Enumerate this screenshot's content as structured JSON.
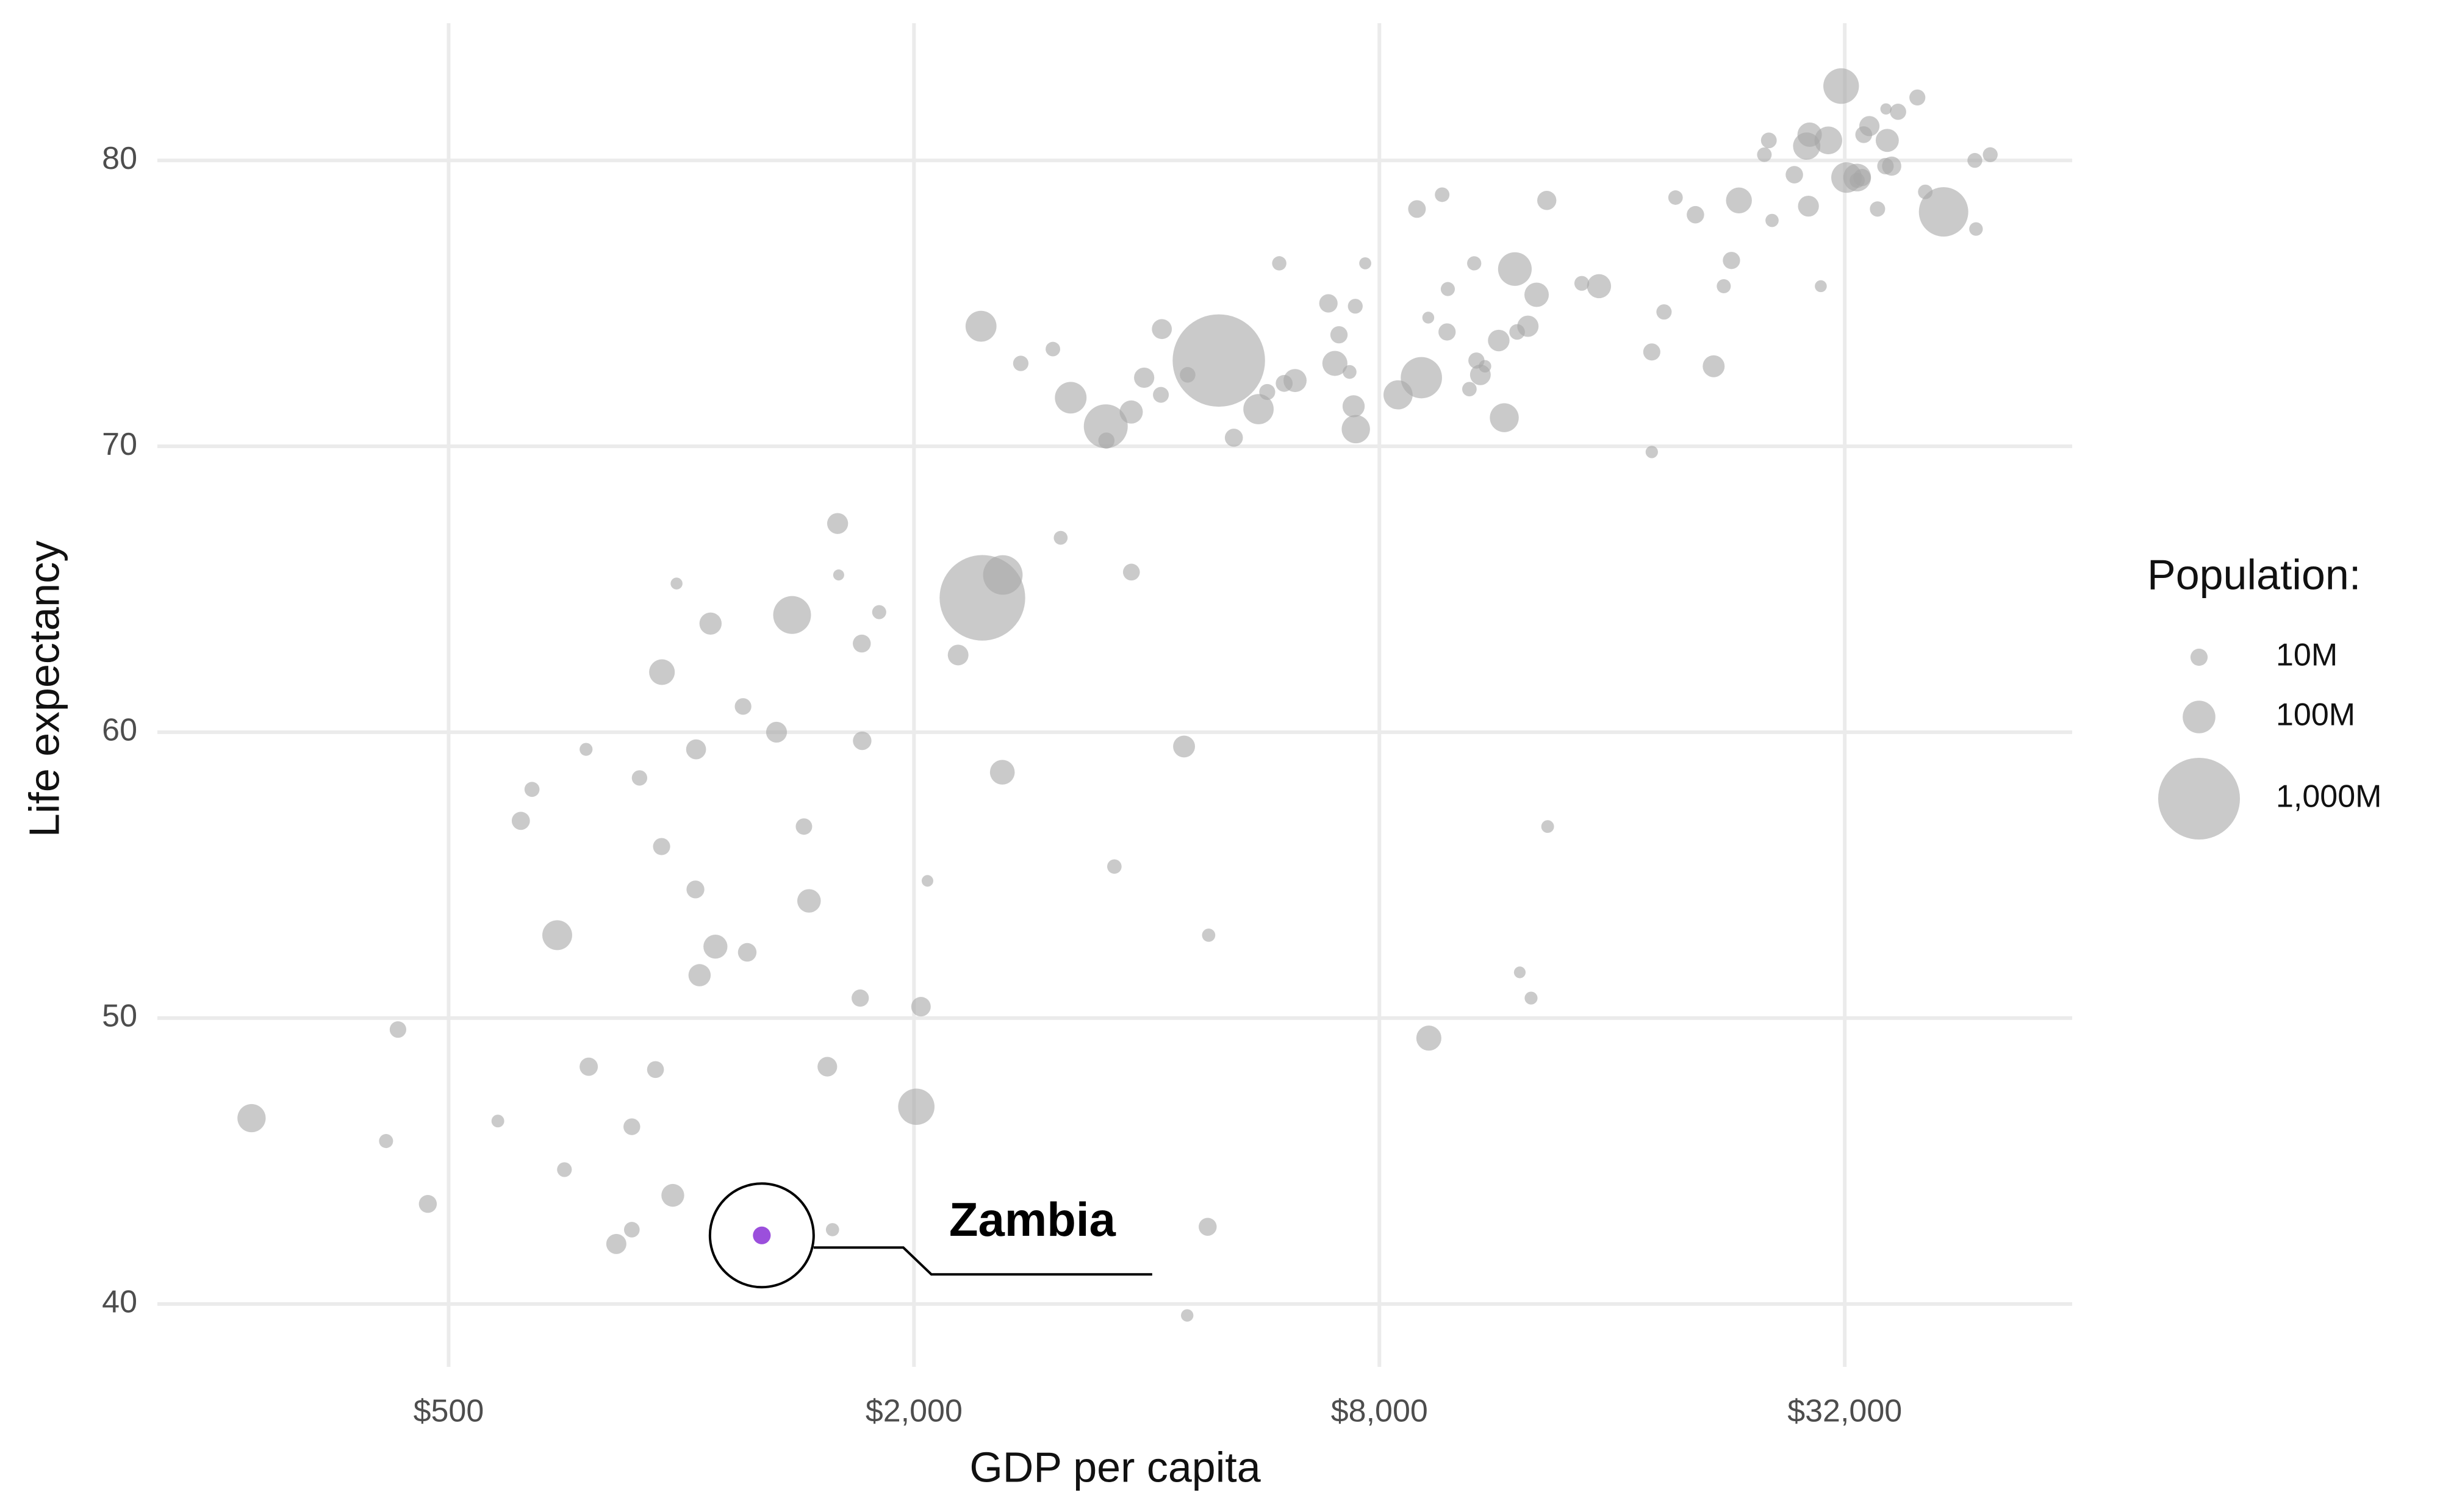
{
  "chart_data": {
    "type": "scatter",
    "xlabel": "GDP per capita",
    "ylabel": "Life expectancy",
    "log_x": true,
    "grid": true,
    "color": "#a6a6a6",
    "xlim": [
      210,
      63000
    ],
    "ylim": [
      37.8,
      84.8
    ],
    "xticks": [
      {
        "value": 500,
        "label": "$500"
      },
      {
        "value": 2000,
        "label": "$2,000"
      },
      {
        "value": 8000,
        "label": "$8,000"
      },
      {
        "value": 32000,
        "label": "$32,000"
      }
    ],
    "yticks": [
      40,
      50,
      60,
      70,
      80
    ],
    "size_legend": {
      "title": "Population:",
      "ticks": [
        {
          "value": 10000000,
          "label": "10M"
        },
        {
          "value": 100000000,
          "label": "100M"
        },
        {
          "value": 1000000000,
          "label": "1,000M"
        }
      ]
    },
    "x": [
      975,
      5937,
      6223,
      4797,
      12779,
      34435,
      36126,
      29796,
      1391,
      33693,
      1441,
      3822,
      7446,
      12570,
      9066,
      10681,
      1217,
      430,
      1714,
      2042,
      36319,
      706,
      1704,
      13172,
      4959,
      7007,
      986,
      278,
      3633,
      9645,
      1545,
      14619,
      8948,
      22833,
      35278,
      2082,
      6025,
      6873,
      5581,
      5728,
      12154,
      641,
      691,
      33207,
      30470,
      13206,
      753,
      32170,
      1328,
      27538,
      5186,
      943,
      579,
      1202,
      3548,
      39725,
      18009,
      36181,
      2452,
      3541,
      11606,
      4471,
      40676,
      25523,
      28570,
      7321,
      31656,
      4519,
      1463,
      1593,
      23348,
      47307,
      10461,
      1569,
      415,
      12058,
      1045,
      759,
      12452,
      1043,
      1803,
      10957,
      11978,
      3096,
      9254,
      3820,
      824,
      944,
      4811,
      1091,
      36798,
      25185,
      2749,
      620,
      2014,
      49357,
      22316,
      2606,
      9809,
      4173,
      7409,
      3190,
      15390,
      20510,
      19329,
      7670,
      10808,
      863,
      1598,
      21655,
      1712,
      9787,
      863,
      47143,
      18678,
      25768,
      926,
      9270,
      28821,
      3970,
      2602,
      4513,
      33860,
      37506,
      4185,
      28718,
      1107,
      7458,
      883,
      18009,
      7093,
      8458,
      1056,
      33203,
      42952,
      10611,
      11416,
      2442,
      3025,
      2281,
      470
    ],
    "y": [
      43.8,
      76.4,
      72.3,
      42.7,
      75.3,
      81.2,
      79.8,
      75.6,
      64.1,
      79.4,
      56.7,
      65.6,
      74.9,
      50.7,
      72.4,
      73.0,
      52.3,
      49.6,
      59.7,
      50.4,
      80.7,
      44.7,
      50.7,
      78.6,
      73.0,
      72.9,
      65.2,
      46.5,
      55.3,
      78.8,
      48.3,
      75.7,
      78.3,
      76.5,
      78.3,
      54.8,
      72.2,
      75.0,
      71.3,
      71.9,
      51.6,
      58.0,
      52.9,
      79.3,
      80.7,
      56.7,
      59.4,
      79.4,
      60.0,
      79.5,
      70.3,
      56.0,
      46.4,
      60.9,
      70.2,
      82.2,
      73.3,
      81.8,
      64.7,
      70.7,
      71.0,
      59.5,
      78.9,
      80.7,
      80.5,
      72.6,
      82.6,
      72.5,
      54.1,
      67.3,
      78.6,
      77.6,
      72.0,
      42.6,
      45.7,
      74.0,
      59.4,
      48.3,
      74.2,
      54.5,
      64.2,
      72.8,
      76.2,
      66.8,
      74.5,
      71.2,
      42.1,
      62.1,
      52.9,
      63.8,
      79.8,
      80.2,
      72.9,
      56.9,
      46.9,
      80.2,
      75.6,
      65.5,
      75.5,
      71.8,
      71.4,
      71.7,
      75.6,
      78.1,
      78.7,
      76.4,
      72.5,
      46.2,
      65.5,
      72.8,
      63.1,
      74.0,
      42.6,
      80.0,
      74.7,
      77.9,
      48.2,
      49.3,
      80.9,
      72.4,
      58.6,
      39.6,
      80.9,
      81.7,
      74.1,
      78.4,
      52.5,
      70.6,
      58.4,
      69.8,
      73.9,
      71.8,
      51.5,
      79.4,
      78.2,
      76.4,
      73.7,
      74.2,
      73.4,
      62.7,
      43.5
    ],
    "size": [
      31889923,
      3600523,
      33333216,
      12420476,
      40301927,
      20434176,
      8199783,
      708573,
      150448339,
      10392226,
      8078314,
      9119152,
      4552198,
      1639131,
      190010647,
      7322858,
      14326203,
      8390505,
      14131858,
      17696293,
      33390141,
      4369038,
      10238807,
      16284741,
      1318683096,
      44227550,
      710960,
      64606759,
      3800610,
      4133884,
      18013409,
      4493312,
      11416987,
      10228744,
      5468120,
      496374,
      9319622,
      13755680,
      80264543,
      6939688,
      551201,
      4906585,
      76511887,
      5238460,
      61083916,
      1454867,
      1688359,
      82400996,
      22873338,
      10706290,
      12572928,
      9947814,
      1472041,
      8502814,
      7483763,
      6980412,
      9956108,
      301931,
      1110396331,
      223547000,
      69453570,
      27499638,
      4109086,
      6426679,
      58147733,
      2780132,
      127467972,
      6053193,
      35610177,
      23301725,
      49044790,
      2505559,
      3921278,
      2012649,
      3193942,
      6036914,
      19167654,
      13327079,
      24821286,
      12031795,
      3270065,
      1250882,
      108700891,
      2874127,
      684736,
      33757175,
      19951656,
      47761980,
      2055080,
      28901790,
      16570613,
      4115771,
      5675356,
      12894865,
      135031164,
      4627926,
      3204897,
      169270617,
      3242173,
      6667147,
      28674757,
      91077287,
      38518241,
      10642836,
      3942491,
      798094,
      22276056,
      8860588,
      199579,
      27601038,
      12267493,
      10150265,
      6144562,
      4553009,
      5447502,
      2009245,
      9118773,
      43997828,
      40448191,
      20378239,
      42292929,
      1133066,
      9031088,
      7554661,
      19314747,
      23174294,
      38139640,
      65068149,
      5701579,
      1056608,
      10276158,
      71158647,
      29170398,
      60776238,
      301139947,
      3447496,
      26084662,
      85262356,
      4018332,
      22211743,
      12311143
    ],
    "highlight": {
      "label": "Zambia",
      "x": 1271,
      "y": 42.4,
      "size": 11746035,
      "color": "#9b4fdc"
    }
  }
}
